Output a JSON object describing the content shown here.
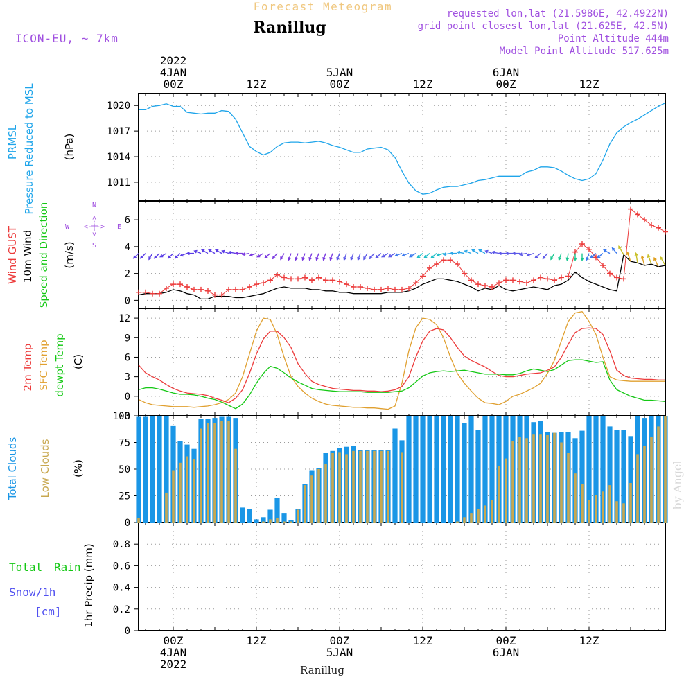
{
  "header": {
    "top_title": "Forecast Meteogram",
    "location": "Ranillug",
    "model": "ICON-EU, ~ 7km",
    "requested": "requested lon,lat (21.5986E, 42.4922N)",
    "gridpoint": "grid point closest lon,lat (21.625E, 42.5N)",
    "point_alt": "Point Altitude 444m",
    "model_alt": "Model Point Altitude 517.625m",
    "footer_location": "Ranillug",
    "watermark": "by Angel"
  },
  "colors": {
    "pressure": "#1fa5ea",
    "gust": "#ec3b3b",
    "wind": "#000000",
    "temp2m": "#ec3b3b",
    "sfc": "#e0a030",
    "dewpt": "#14c814",
    "total_cloud": "#1a96e6",
    "low_cloud": "#c8a850",
    "rain": "#14c814",
    "snow": "#5050f0",
    "purple": "#a050e0",
    "title_orange": "#f0c880"
  },
  "time_axis": {
    "top_labels": [
      {
        "h": 0,
        "lines": [
          "2022",
          "4JAN",
          "00Z"
        ]
      },
      {
        "h": 12,
        "lines": [
          "12Z"
        ]
      },
      {
        "h": 24,
        "lines": [
          "5JAN",
          "00Z"
        ]
      },
      {
        "h": 36,
        "lines": [
          "12Z"
        ]
      },
      {
        "h": 48,
        "lines": [
          "6JAN",
          "00Z"
        ]
      },
      {
        "h": 60,
        "lines": [
          "12Z"
        ]
      }
    ],
    "bottom_labels": [
      {
        "h": 0,
        "lines": [
          "00Z",
          "4JAN",
          "2022"
        ]
      },
      {
        "h": 12,
        "lines": [
          "12Z"
        ]
      },
      {
        "h": 24,
        "lines": [
          "00Z",
          "5JAN"
        ]
      },
      {
        "h": 36,
        "lines": [
          "12Z"
        ]
      },
      {
        "h": 48,
        "lines": [
          "00Z",
          "6JAN"
        ]
      },
      {
        "h": 60,
        "lines": [
          "12Z"
        ]
      }
    ]
  },
  "labels": {
    "pressure": [
      "PRMSL",
      "Pressure Reduced to MSL"
    ],
    "pressure_unit": "(hPa)",
    "wind_gust": "Wind GUST",
    "wind_10m": "10m Wind",
    "wind_speed_dir": "Speed and Direction",
    "wind_unit": "(m/s)",
    "compass_n": "N",
    "compass_s": "S",
    "compass_w": "W",
    "compass_e": "E",
    "compass_ew": "<-|->",
    "compass_ns": "<-|->",
    "temp_2m": "2m Temp",
    "temp_sfc": "SFC Temp",
    "temp_dew": "dewpt Temp",
    "temp_unit": "(C)",
    "cloud_total": "Total Clouds",
    "cloud_low": "Low Clouds",
    "cloud_unit": "(%)",
    "rain_total": "Total",
    "rain_rain": "Rain",
    "rain_snow": "Snow/1h",
    "rain_cm": "[cm]",
    "precip_axis": "1hr Precip (mm)"
  },
  "chart_data": [
    {
      "type": "line",
      "title": "PRMSL Pressure Reduced to MSL",
      "ylabel": "(hPa)",
      "x_unit": "hours from 2022-01-04 00Z",
      "xlim": [
        -5,
        71
      ],
      "ylim": [
        1008.8,
        1021.4
      ],
      "yticks": [
        1011,
        1014,
        1017,
        1020
      ],
      "grid": true,
      "series": [
        {
          "name": "PRMSL",
          "x": [
            -5,
            -4,
            -3,
            -2,
            -1,
            0,
            1,
            2,
            3,
            4,
            5,
            6,
            7,
            8,
            9,
            10,
            11,
            12,
            13,
            14,
            15,
            16,
            17,
            18,
            19,
            20,
            21,
            22,
            23,
            24,
            25,
            26,
            27,
            28,
            29,
            30,
            31,
            32,
            33,
            34,
            35,
            36,
            37,
            38,
            39,
            40,
            41,
            42,
            43,
            44,
            45,
            46,
            47,
            48,
            49,
            50,
            51,
            52,
            53,
            54,
            55,
            56,
            57,
            58,
            59,
            60,
            61,
            62,
            63,
            64,
            65,
            66,
            67,
            68,
            69,
            70,
            71
          ],
          "values": [
            1019.5,
            1019.5,
            1019.9,
            1020.0,
            1020.2,
            1019.9,
            1019.9,
            1019.2,
            1019.1,
            1019.0,
            1019.1,
            1019.1,
            1019.4,
            1019.3,
            1018.4,
            1016.8,
            1015.2,
            1014.6,
            1014.2,
            1014.5,
            1015.2,
            1015.6,
            1015.7,
            1015.7,
            1015.6,
            1015.7,
            1015.8,
            1015.6,
            1015.3,
            1015.1,
            1014.8,
            1014.5,
            1014.5,
            1014.9,
            1015.0,
            1015.1,
            1014.8,
            1013.9,
            1012.3,
            1010.9,
            1010.0,
            1009.6,
            1009.7,
            1010.1,
            1010.4,
            1010.5,
            1010.5,
            1010.7,
            1010.9,
            1011.2,
            1011.3,
            1011.5,
            1011.7,
            1011.7,
            1011.7,
            1011.7,
            1012.2,
            1012.4,
            1012.8,
            1012.8,
            1012.7,
            1012.3,
            1011.8,
            1011.4,
            1011.2,
            1011.4,
            1012.0,
            1013.6,
            1015.5,
            1016.8,
            1017.5,
            1018.0,
            1018.4,
            1018.9,
            1019.4,
            1019.9,
            1020.3
          ]
        }
      ]
    },
    {
      "type": "line",
      "title": "Wind GUST, 10m Wind Speed and Direction",
      "ylabel": "(m/s)",
      "xlim": [
        -5,
        71
      ],
      "ylim": [
        -0.6,
        7.4
      ],
      "yticks": [
        0,
        2,
        4,
        6
      ],
      "grid": true,
      "series": [
        {
          "name": "Wind GUST",
          "marker": "+",
          "values": [
            0.6,
            0.6,
            0.5,
            0.5,
            0.9,
            1.2,
            1.2,
            1.0,
            0.8,
            0.8,
            0.7,
            0.4,
            0.4,
            0.8,
            0.8,
            0.8,
            1.0,
            1.2,
            1.3,
            1.5,
            1.9,
            1.7,
            1.6,
            1.6,
            1.7,
            1.5,
            1.7,
            1.5,
            1.5,
            1.4,
            1.2,
            1.0,
            1.0,
            0.9,
            0.8,
            0.8,
            0.9,
            0.8,
            0.8,
            0.9,
            1.3,
            1.8,
            2.4,
            2.7,
            3.0,
            3.0,
            2.7,
            2.0,
            1.5,
            1.2,
            1.1,
            1.0,
            1.3,
            1.5,
            1.5,
            1.4,
            1.3,
            1.5,
            1.7,
            1.6,
            1.5,
            1.7,
            1.8,
            3.6,
            4.2,
            3.8,
            3.2,
            2.6,
            2.0,
            1.7,
            1.6,
            6.8,
            6.4,
            6.0,
            5.6,
            5.4,
            5.1
          ]
        },
        {
          "name": "10m Wind",
          "values": [
            0.4,
            0.5,
            0.5,
            0.5,
            0.6,
            0.8,
            0.7,
            0.5,
            0.4,
            0.1,
            0.1,
            0.3,
            0.3,
            0.3,
            0.2,
            0.2,
            0.3,
            0.4,
            0.5,
            0.7,
            0.9,
            1.0,
            0.9,
            0.9,
            0.9,
            0.8,
            0.8,
            0.7,
            0.7,
            0.6,
            0.6,
            0.5,
            0.5,
            0.5,
            0.5,
            0.5,
            0.6,
            0.6,
            0.6,
            0.7,
            0.9,
            1.2,
            1.4,
            1.6,
            1.6,
            1.5,
            1.4,
            1.2,
            1.0,
            0.7,
            0.9,
            0.8,
            1.1,
            0.8,
            0.7,
            0.8,
            0.9,
            1.0,
            0.9,
            0.8,
            1.1,
            1.2,
            1.5,
            2.1,
            1.7,
            1.4,
            1.2,
            1.0,
            0.8,
            0.7,
            3.4,
            2.9,
            2.8,
            2.6,
            2.7,
            2.5,
            2.6
          ]
        },
        {
          "name": "Direction arrows (drawn at y=3.5)",
          "values": [
            225,
            225,
            210,
            225,
            240,
            225,
            225,
            250,
            270,
            290,
            300,
            300,
            300,
            290,
            280,
            270,
            260,
            250,
            240,
            230,
            220,
            210,
            200,
            200,
            200,
            200,
            200,
            200,
            200,
            200,
            200,
            200,
            200,
            210,
            220,
            230,
            240,
            240,
            250,
            250,
            240,
            230,
            230,
            230,
            250,
            260,
            270,
            280,
            290,
            300,
            300,
            290,
            280,
            270,
            270,
            270,
            260,
            250,
            230,
            220,
            210,
            200,
            190,
            180,
            180,
            200,
            230,
            230,
            300,
            320,
            330,
            340,
            350,
            345,
            340,
            335,
            330
          ]
        }
      ]
    },
    {
      "type": "line",
      "title": "2m Temp, SFC Temp, dewpt Temp",
      "ylabel": "(C)",
      "xlim": [
        -5,
        71
      ],
      "ylim": [
        -3,
        13.5
      ],
      "yticks": [
        -3,
        0,
        3,
        6,
        9,
        12
      ],
      "grid": true,
      "series": [
        {
          "name": "2m Temp",
          "values": [
            4.8,
            3.6,
            3.0,
            2.5,
            1.8,
            1.2,
            0.8,
            0.5,
            0.4,
            0.3,
            0.1,
            -0.3,
            -0.6,
            -1.0,
            -0.3,
            1.0,
            3.5,
            6.5,
            8.8,
            10.0,
            10.0,
            9.0,
            7.5,
            5.0,
            3.5,
            2.3,
            1.8,
            1.5,
            1.2,
            1.1,
            1.0,
            0.9,
            0.9,
            0.8,
            0.8,
            0.7,
            0.8,
            1.0,
            1.5,
            3.0,
            6.0,
            8.5,
            10.0,
            10.4,
            10.2,
            9.0,
            7.5,
            6.2,
            5.5,
            5.0,
            4.5,
            3.8,
            3.2,
            3.0,
            3.0,
            3.2,
            3.4,
            3.5,
            3.6,
            4.0,
            4.5,
            6.0,
            8.0,
            9.8,
            10.4,
            10.5,
            10.4,
            9.5,
            7.0,
            4.0,
            3.2,
            2.8,
            2.7,
            2.6,
            2.6,
            2.5,
            2.5
          ]
        },
        {
          "name": "SFC Temp",
          "values": [
            -0.5,
            -1.0,
            -1.3,
            -1.4,
            -1.5,
            -1.6,
            -1.6,
            -1.6,
            -1.7,
            -1.6,
            -1.5,
            -1.3,
            -1.0,
            -0.5,
            0.5,
            3.0,
            6.5,
            10.0,
            12.0,
            11.8,
            9.5,
            6.0,
            3.0,
            1.5,
            0.5,
            -0.3,
            -0.8,
            -1.2,
            -1.4,
            -1.5,
            -1.6,
            -1.7,
            -1.7,
            -1.8,
            -1.8,
            -1.9,
            -2.0,
            -1.5,
            2.0,
            7.0,
            10.5,
            12.0,
            11.8,
            11.0,
            9.0,
            6.0,
            3.5,
            2.0,
            0.8,
            -0.3,
            -1.0,
            -1.1,
            -1.3,
            -0.8,
            0.0,
            0.3,
            0.8,
            1.3,
            2.0,
            3.5,
            5.5,
            8.5,
            11.5,
            12.8,
            13.0,
            11.5,
            9.5,
            6.0,
            3.0,
            2.5,
            2.4,
            2.3,
            2.3,
            2.3,
            2.3,
            2.3,
            2.3
          ]
        },
        {
          "name": "dewpt Temp",
          "values": [
            1.0,
            1.3,
            1.3,
            1.1,
            0.8,
            0.5,
            0.3,
            0.3,
            0.2,
            0.0,
            -0.3,
            -0.5,
            -0.9,
            -1.4,
            -1.9,
            -1.2,
            0.2,
            2.0,
            3.5,
            4.6,
            4.3,
            3.6,
            2.8,
            2.2,
            1.7,
            1.2,
            1.0,
            0.9,
            0.8,
            0.7,
            0.7,
            0.7,
            0.7,
            0.6,
            0.6,
            0.6,
            0.6,
            0.7,
            0.8,
            1.3,
            2.2,
            3.1,
            3.6,
            3.8,
            3.9,
            3.8,
            3.9,
            4.0,
            3.8,
            3.6,
            3.4,
            3.4,
            3.4,
            3.3,
            3.3,
            3.5,
            3.9,
            4.2,
            4.0,
            3.8,
            4.1,
            4.8,
            5.5,
            5.6,
            5.6,
            5.4,
            5.2,
            5.3,
            2.5,
            1.0,
            0.5,
            0.0,
            -0.3,
            -0.6,
            -0.6,
            -0.7,
            -0.8
          ]
        }
      ]
    },
    {
      "type": "bar",
      "title": "Total Clouds, Low Clouds",
      "ylabel": "(%)",
      "xlim": [
        -5,
        71
      ],
      "ylim": [
        0,
        100
      ],
      "yticks": [
        0,
        25,
        50,
        75,
        100
      ],
      "grid": true,
      "series": [
        {
          "name": "Total Clouds",
          "values": [
            99,
            99,
            100,
            100,
            100,
            91,
            76,
            73,
            69,
            97,
            97,
            98,
            99,
            99,
            98,
            14,
            13,
            3,
            5,
            12,
            23,
            9,
            2,
            13,
            36,
            49,
            51,
            65,
            67,
            70,
            71,
            72,
            68,
            68,
            68,
            68,
            68,
            88,
            77,
            100,
            100,
            100,
            100,
            100,
            100,
            100,
            100,
            93,
            100,
            87,
            100,
            100,
            100,
            100,
            100,
            100,
            100,
            94,
            95,
            85,
            84,
            85,
            85,
            79,
            86,
            100,
            100,
            100,
            90,
            87,
            87,
            81,
            100,
            98,
            100,
            100,
            100
          ]
        },
        {
          "name": "Low Clouds",
          "values": [
            4,
            0,
            0,
            0,
            28,
            49,
            56,
            62,
            59,
            88,
            93,
            93,
            95,
            95,
            69,
            0,
            0,
            0,
            1,
            3,
            4,
            1,
            1,
            12,
            35,
            44,
            50,
            55,
            65,
            66,
            64,
            67,
            67,
            67,
            67,
            67,
            67,
            0,
            66,
            0,
            0,
            0,
            0,
            0,
            0,
            0,
            1,
            5,
            9,
            13,
            16,
            21,
            53,
            60,
            76,
            80,
            79,
            83,
            83,
            82,
            84,
            75,
            65,
            46,
            36,
            21,
            26,
            29,
            35,
            20,
            18,
            37,
            64,
            72,
            80,
            90,
            100
          ]
        }
      ]
    },
    {
      "type": "bar",
      "title": "1hr Precip (mm)",
      "ylabel": "1hr Precip (mm)",
      "xlim": [
        -5,
        71
      ],
      "ylim": [
        0,
        1.0
      ],
      "yticks": [
        0,
        0.2,
        0.4,
        0.6,
        0.8
      ],
      "grid": true,
      "series": [
        {
          "name": "Total Rain",
          "values": []
        },
        {
          "name": "Snow/1h [cm]",
          "values": []
        }
      ]
    }
  ]
}
